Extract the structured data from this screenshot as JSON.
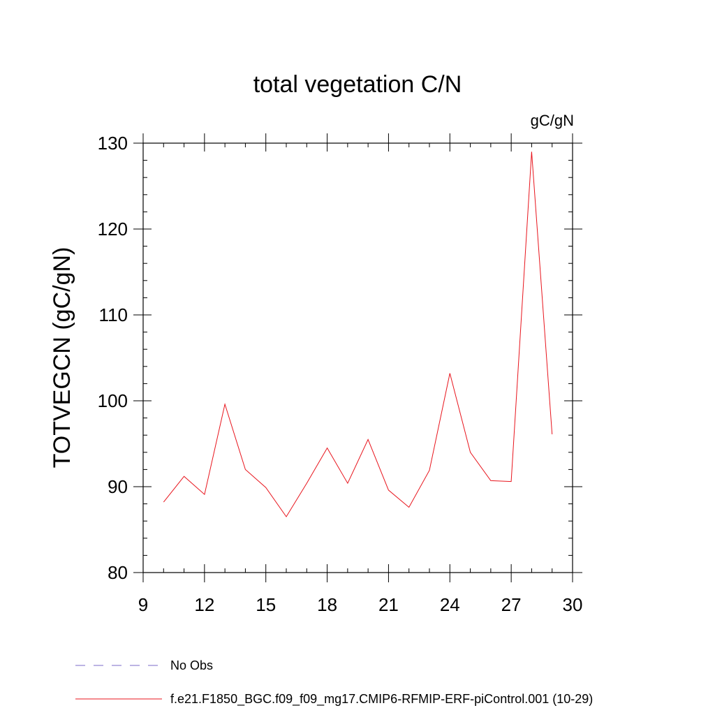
{
  "chart_data": {
    "type": "line",
    "title": "total vegetation C/N",
    "units_label": "gC/gN",
    "xlabel": "",
    "ylabel": "TOTVEGCN  (gC/gN)",
    "xlim": [
      9,
      30
    ],
    "ylim": [
      80,
      130
    ],
    "x_ticks": [
      9,
      12,
      15,
      18,
      21,
      24,
      27,
      30
    ],
    "y_ticks": [
      80,
      90,
      100,
      110,
      120,
      130
    ],
    "x_minor_step": 1,
    "y_minor_step": 2,
    "series": [
      {
        "name": "f.e21.F1850_BGC.f09_f09_mg17.CMIP6-RFMIP-ERF-piControl.001 (10-29)",
        "color": "#e8141c",
        "style": "solid",
        "x": [
          10,
          11,
          12,
          13,
          14,
          15,
          16,
          17,
          18,
          19,
          20,
          21,
          22,
          23,
          24,
          25,
          26,
          27,
          28,
          29
        ],
        "y": [
          88.2,
          91.2,
          89.1,
          99.6,
          92.0,
          89.9,
          86.5,
          90.4,
          94.5,
          90.4,
          95.5,
          89.6,
          87.6,
          91.9,
          103.2,
          94.0,
          90.7,
          90.6,
          129.0,
          96.1
        ]
      }
    ],
    "legend": [
      {
        "label": "No Obs",
        "color": "#7b68c8",
        "style": "dashed"
      },
      {
        "label": "f.e21.F1850_BGC.f09_f09_mg17.CMIP6-RFMIP-ERF-piControl.001 (10-29)",
        "color": "#e8141c",
        "style": "solid"
      }
    ]
  }
}
